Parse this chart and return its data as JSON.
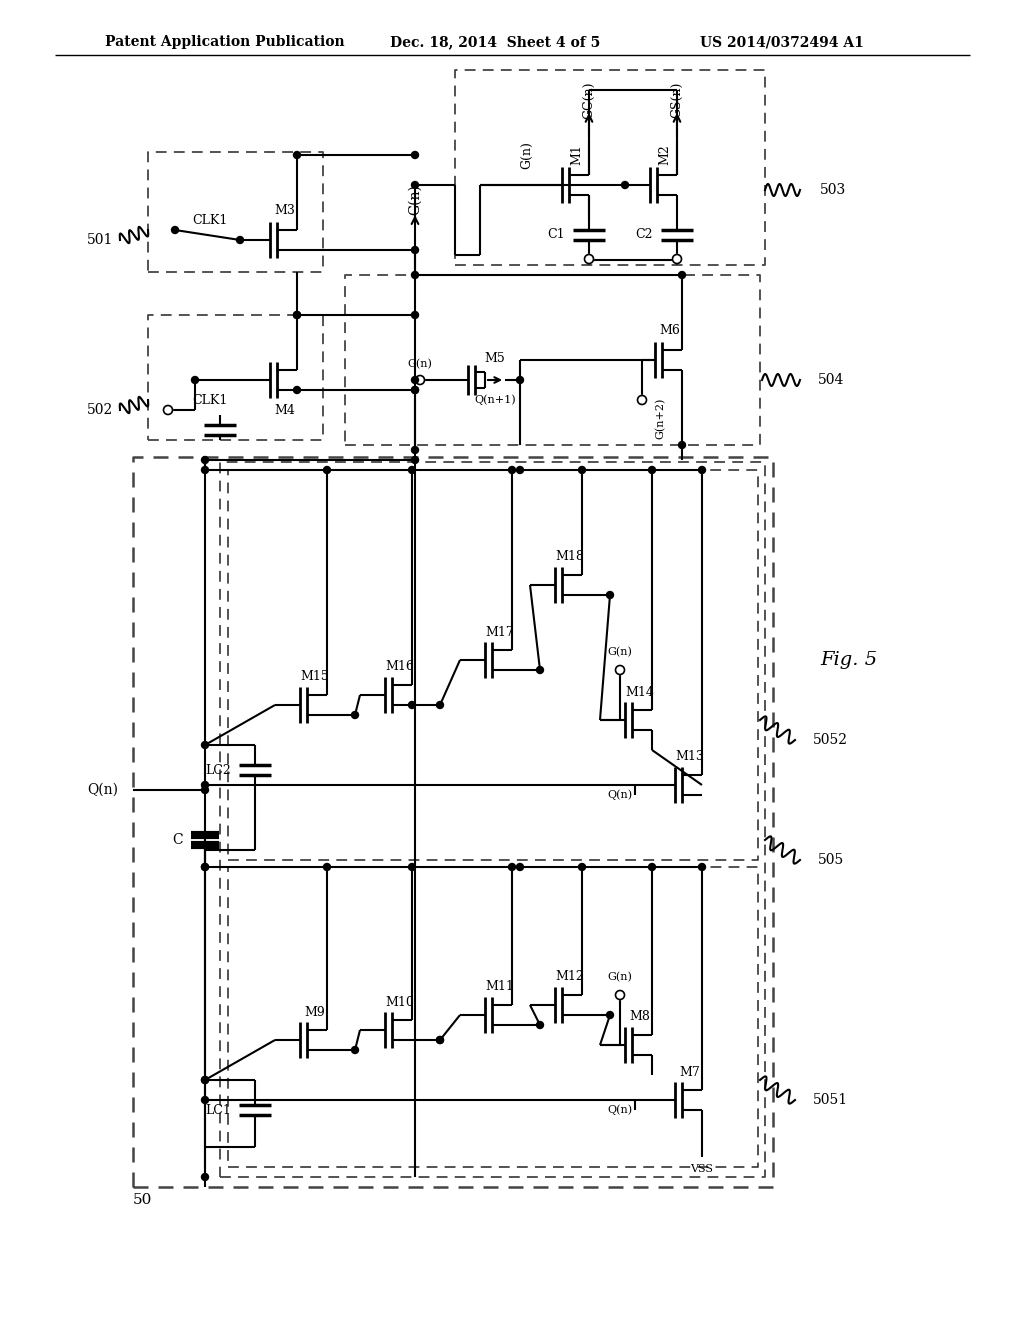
{
  "bg_color": "#ffffff",
  "header_left": "Patent Application Publication",
  "header_center": "Dec. 18, 2014  Sheet 4 of 5",
  "header_right": "US 2014/0372494 A1",
  "fig_label": "Fig. 5"
}
